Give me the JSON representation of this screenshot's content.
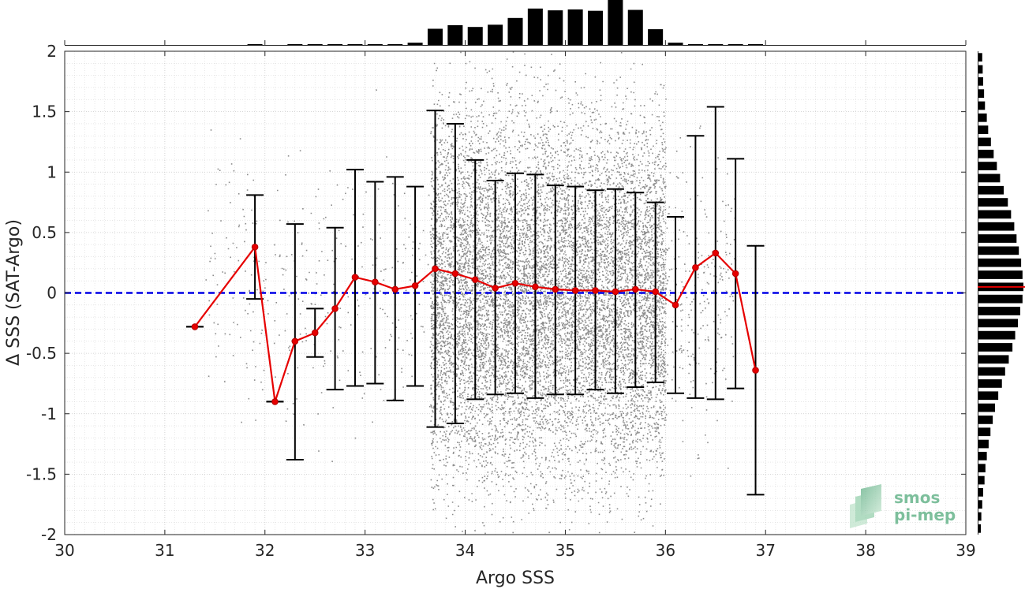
{
  "logo": {
    "line1": "smos",
    "line2": "pi-mep"
  },
  "chart_data": {
    "type": "scatter",
    "title": "",
    "xlabel": "Argo SSS",
    "ylabel": "Δ SSS (SAT-Argo)",
    "xlim": [
      30,
      39
    ],
    "ylim": [
      -2,
      2
    ],
    "xticks": [
      30,
      31,
      32,
      33,
      34,
      35,
      36,
      37,
      38,
      39
    ],
    "yticks": [
      -2,
      -1.5,
      -1,
      -0.5,
      0,
      0.5,
      1,
      1.5,
      2
    ],
    "xtick_labels": [
      "30",
      "31",
      "32",
      "33",
      "34",
      "35",
      "36",
      "37",
      "38",
      "39"
    ],
    "ytick_labels": [
      "-2",
      "-1.5",
      "-1",
      "-0.5",
      "0",
      "0.5",
      "1",
      "1.5",
      "2"
    ],
    "grid": true,
    "minor_grid": true,
    "zero_line": {
      "y": 0,
      "color": "#0000e6",
      "style": "dashed"
    },
    "colors": {
      "scatter": "#8c8c8c",
      "mean": "#e60000",
      "errorbar": "#000000",
      "histogram": "#000000",
      "median_marker": "#e60000"
    },
    "scatter_cloud": {
      "x_range": [
        33.65,
        36.0
      ],
      "y_range": [
        -2,
        2
      ],
      "note_density": "dense"
    },
    "binned_stats": [
      {
        "x": 31.3,
        "mean": -0.28,
        "lo": -0.28,
        "hi": -0.28
      },
      {
        "x": 31.9,
        "mean": 0.38,
        "lo": -0.05,
        "hi": 0.81
      },
      {
        "x": 32.1,
        "mean": -0.9,
        "lo": -0.9,
        "hi": -0.9
      },
      {
        "x": 32.3,
        "mean": -0.4,
        "lo": -1.38,
        "hi": 0.57
      },
      {
        "x": 32.5,
        "mean": -0.33,
        "lo": -0.53,
        "hi": -0.13
      },
      {
        "x": 32.7,
        "mean": -0.13,
        "lo": -0.8,
        "hi": 0.54
      },
      {
        "x": 32.9,
        "mean": 0.13,
        "lo": -0.77,
        "hi": 1.02
      },
      {
        "x": 33.1,
        "mean": 0.09,
        "lo": -0.75,
        "hi": 0.92
      },
      {
        "x": 33.3,
        "mean": 0.03,
        "lo": -0.89,
        "hi": 0.96
      },
      {
        "x": 33.5,
        "mean": 0.06,
        "lo": -0.77,
        "hi": 0.88
      },
      {
        "x": 33.7,
        "mean": 0.2,
        "lo": -1.11,
        "hi": 1.51
      },
      {
        "x": 33.9,
        "mean": 0.16,
        "lo": -1.08,
        "hi": 1.4
      },
      {
        "x": 34.1,
        "mean": 0.11,
        "lo": -0.88,
        "hi": 1.1
      },
      {
        "x": 34.3,
        "mean": 0.04,
        "lo": -0.84,
        "hi": 0.93
      },
      {
        "x": 34.5,
        "mean": 0.08,
        "lo": -0.83,
        "hi": 0.99
      },
      {
        "x": 34.7,
        "mean": 0.05,
        "lo": -0.87,
        "hi": 0.98
      },
      {
        "x": 34.9,
        "mean": 0.03,
        "lo": -0.84,
        "hi": 0.89
      },
      {
        "x": 35.1,
        "mean": 0.02,
        "lo": -0.84,
        "hi": 0.88
      },
      {
        "x": 35.3,
        "mean": 0.02,
        "lo": -0.8,
        "hi": 0.85
      },
      {
        "x": 35.5,
        "mean": 0.01,
        "lo": -0.83,
        "hi": 0.86
      },
      {
        "x": 35.7,
        "mean": 0.03,
        "lo": -0.78,
        "hi": 0.83
      },
      {
        "x": 35.9,
        "mean": 0.01,
        "lo": -0.74,
        "hi": 0.75
      },
      {
        "x": 36.1,
        "mean": -0.1,
        "lo": -0.83,
        "hi": 0.63
      },
      {
        "x": 36.3,
        "mean": 0.21,
        "lo": -0.87,
        "hi": 1.3
      },
      {
        "x": 36.5,
        "mean": 0.33,
        "lo": -0.88,
        "hi": 1.54
      },
      {
        "x": 36.7,
        "mean": 0.16,
        "lo": -0.79,
        "hi": 1.11
      },
      {
        "x": 36.9,
        "mean": -0.64,
        "lo": -1.67,
        "hi": 0.39
      }
    ],
    "top_histogram": {
      "bin_centers": [
        31.9,
        32.3,
        32.5,
        32.7,
        32.9,
        33.1,
        33.3,
        33.5,
        33.7,
        33.9,
        34.1,
        34.3,
        34.5,
        34.7,
        34.9,
        35.1,
        35.3,
        35.5,
        35.7,
        35.9,
        36.1,
        36.3,
        36.5,
        36.7,
        36.9
      ],
      "relative_counts": [
        0.01,
        0.01,
        0.01,
        0.01,
        0.01,
        0.01,
        0.01,
        0.05,
        0.36,
        0.44,
        0.4,
        0.45,
        0.6,
        0.81,
        0.77,
        0.79,
        0.76,
        1.0,
        0.78,
        0.35,
        0.05,
        0.01,
        0.01,
        0.01,
        0.01
      ]
    },
    "right_histogram": {
      "y_start": -1.95,
      "y_step": 0.1,
      "relative_counts": [
        0.07,
        0.08,
        0.1,
        0.12,
        0.15,
        0.17,
        0.2,
        0.24,
        0.28,
        0.33,
        0.38,
        0.45,
        0.53,
        0.6,
        0.68,
        0.76,
        0.82,
        0.88,
        0.93,
        0.98,
        1.0,
        0.98,
        0.95,
        0.9,
        0.85,
        0.8,
        0.73,
        0.66,
        0.57,
        0.49,
        0.42,
        0.35,
        0.29,
        0.23,
        0.2,
        0.16,
        0.14,
        0.12,
        0.11,
        0.1
      ],
      "median": 0.05
    }
  }
}
